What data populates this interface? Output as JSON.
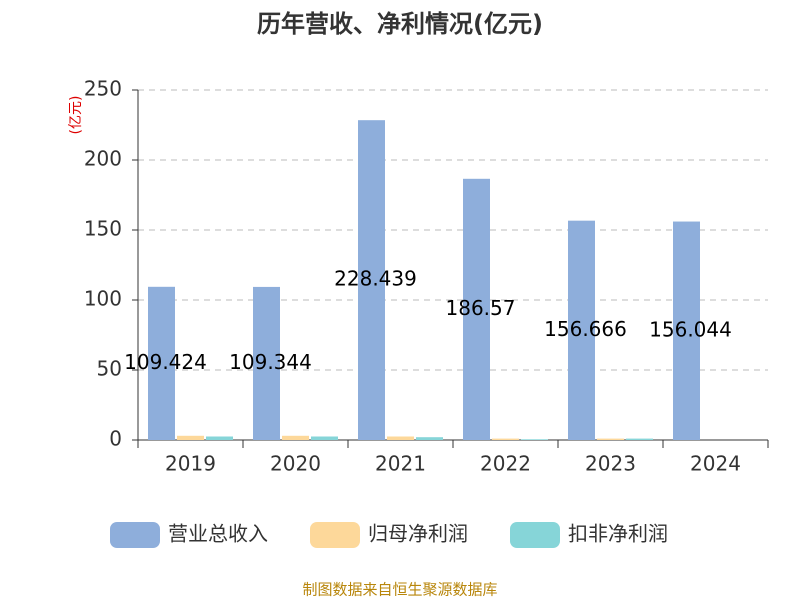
{
  "chart_data": {
    "type": "bar",
    "title": "历年营收、净利情况(亿元)",
    "y_label": "(亿元)",
    "categories": [
      "2019",
      "2020",
      "2021",
      "2022",
      "2023",
      "2024"
    ],
    "series": [
      {
        "name": "营业总收入",
        "color": "#8eaedb",
        "values": [
          109.424,
          109.344,
          228.439,
          186.57,
          156.666,
          156.044
        ],
        "show_labels": true
      },
      {
        "name": "归母净利润",
        "color": "#fdd89a",
        "values": [
          3.0,
          3.0,
          2.5,
          1.0,
          1.0,
          null
        ]
      },
      {
        "name": "扣非净利润",
        "color": "#86d5d8",
        "values": [
          2.5,
          2.5,
          2.0,
          0.5,
          1.0,
          null
        ]
      }
    ],
    "ylim": [
      0,
      250
    ],
    "yticks": [
      0,
      50,
      100,
      150,
      200,
      250
    ],
    "grid": true,
    "source": "制图数据来自恒生聚源数据库"
  }
}
